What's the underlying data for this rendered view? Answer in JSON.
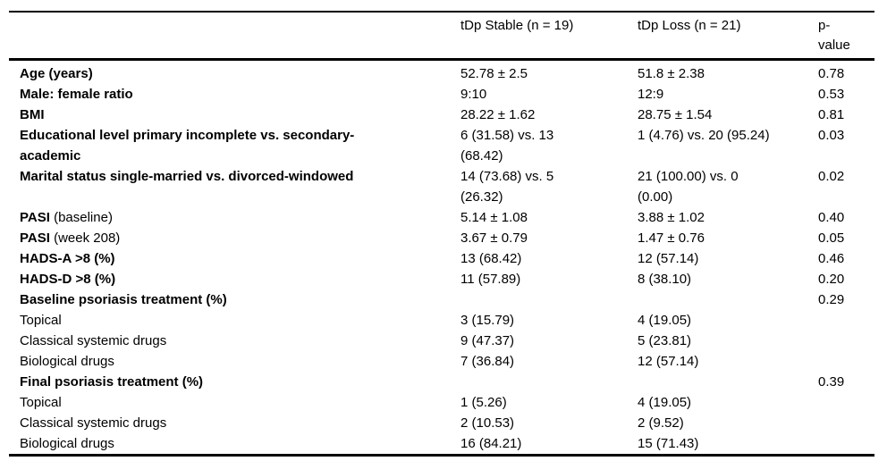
{
  "table": {
    "columns": [
      {
        "label": ""
      },
      {
        "label": "tDp Stable (n = 19)"
      },
      {
        "label": "tDp Loss (n = 21)"
      },
      {
        "label": "p-\nvalue"
      }
    ],
    "rows": [
      {
        "label_bold": "Age (years)",
        "label_rest": "",
        "stable": "52.78 ± 2.5",
        "loss": "51.8 ± 2.38",
        "p": "0.78"
      },
      {
        "label_bold": "Male: female ratio",
        "label_rest": "",
        "stable": "9:10",
        "loss": "12:9",
        "p": "0.53"
      },
      {
        "label_bold": "BMI",
        "label_rest": "",
        "stable": "28.22 ± 1.62",
        "loss": "28.75 ± 1.54",
        "p": "0.81"
      },
      {
        "label_bold": "Educational level primary incomplete vs. secondary-\nacademic",
        "label_rest": "",
        "stable": "6 (31.58) vs. 13\n(68.42)",
        "loss": "1 (4.76) vs. 20 (95.24)",
        "p": "0.03"
      },
      {
        "label_bold": "Marital status single-married vs. divorced-windowed",
        "label_rest": "",
        "stable": "14 (73.68) vs. 5\n(26.32)",
        "loss": "21 (100.00) vs. 0\n(0.00)",
        "p": "0.02"
      },
      {
        "label_bold": "PASI",
        "label_rest": " (baseline)",
        "stable": "5.14 ± 1.08",
        "loss": "3.88 ± 1.02",
        "p": "0.40"
      },
      {
        "label_bold": "PASI",
        "label_rest": " (week 208)",
        "stable": "3.67 ± 0.79",
        "loss": "1.47 ± 0.76",
        "p": "0.05"
      },
      {
        "label_bold": "HADS-A >8 (%)",
        "label_rest": "",
        "stable": "13 (68.42)",
        "loss": "12 (57.14)",
        "p": "0.46"
      },
      {
        "label_bold": "HADS-D >8 (%)",
        "label_rest": "",
        "stable": "11 (57.89)",
        "loss": "8 (38.10)",
        "p": "0.20"
      },
      {
        "label_bold": "Baseline psoriasis treatment (%)",
        "label_rest": "",
        "stable": "",
        "loss": "",
        "p": "0.29"
      },
      {
        "label_bold": "",
        "label_rest": "Topical",
        "stable": "3 (15.79)",
        "loss": "4 (19.05)",
        "p": ""
      },
      {
        "label_bold": "",
        "label_rest": "Classical systemic drugs",
        "stable": "9 (47.37)",
        "loss": "5 (23.81)",
        "p": ""
      },
      {
        "label_bold": "",
        "label_rest": "Biological drugs",
        "stable": "7 (36.84)",
        "loss": "12 (57.14)",
        "p": ""
      },
      {
        "label_bold": "Final psoriasis treatment (%)",
        "label_rest": "",
        "stable": "",
        "loss": "",
        "p": "0.39"
      },
      {
        "label_bold": "",
        "label_rest": "Topical",
        "stable": "1 (5.26)",
        "loss": "4 (19.05)",
        "p": ""
      },
      {
        "label_bold": "",
        "label_rest": "Classical systemic drugs",
        "stable": "2 (10.53)",
        "loss": "2 (9.52)",
        "p": ""
      },
      {
        "label_bold": "",
        "label_rest": "Biological drugs",
        "stable": "16 (84.21)",
        "loss": "15 (71.43)",
        "p": ""
      }
    ]
  }
}
